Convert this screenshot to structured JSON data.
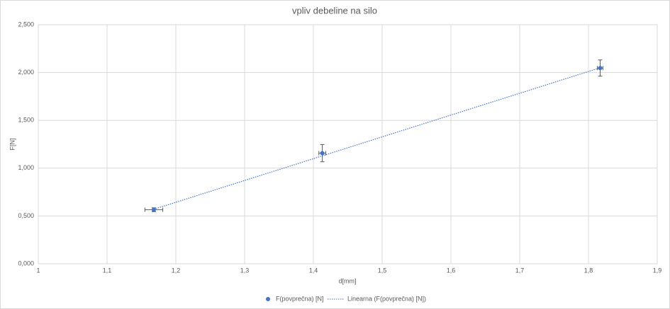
{
  "chart_data": {
    "type": "scatter",
    "title": "vpliv debeline na silo",
    "x_label": "d[mm]",
    "y_label": "F[N]",
    "series": [
      {
        "name": "F(povprečna) [N]",
        "color": "#4472c4",
        "x": [
          1.168,
          1.413,
          1.817
        ],
        "values": [
          0.565,
          1.157,
          2.047
        ],
        "x_err": [
          0.013,
          0.005,
          0.004
        ],
        "y_err": [
          0.02,
          0.09,
          0.085
        ]
      },
      {
        "name": "Linearna (F(povprečna) [N])",
        "color": "#4472c4",
        "style": "dotted",
        "x": [
          1.168,
          1.817
        ],
        "values": [
          0.57,
          2.05
        ]
      }
    ],
    "xlim": [
      1,
      1.9
    ],
    "xticks": [
      1,
      {
        "value": 1.1,
        "label": "1,1"
      },
      {
        "value": 1.2,
        "label": "1,2"
      },
      {
        "value": 1.3,
        "label": "1,3"
      },
      {
        "value": 1.4,
        "label": "1,4"
      },
      {
        "value": 1.5,
        "label": "1,5"
      },
      {
        "value": 1.6,
        "label": "1,6"
      },
      {
        "value": 1.7,
        "label": "1,7"
      },
      {
        "value": 1.8,
        "label": "1,8"
      },
      {
        "value": 1.9,
        "label": "1,9"
      }
    ],
    "ylim": [
      0,
      2.5
    ],
    "yticks": [
      {
        "value": 0,
        "label": "0,000"
      },
      {
        "value": 0.5,
        "label": "0,500"
      },
      {
        "value": 1,
        "label": "1,000"
      },
      {
        "value": 1.5,
        "label": "1,500"
      },
      {
        "value": 2,
        "label": "2,000"
      },
      {
        "value": 2.5,
        "label": "2,500"
      }
    ],
    "grid": true,
    "legend": "bottom"
  }
}
